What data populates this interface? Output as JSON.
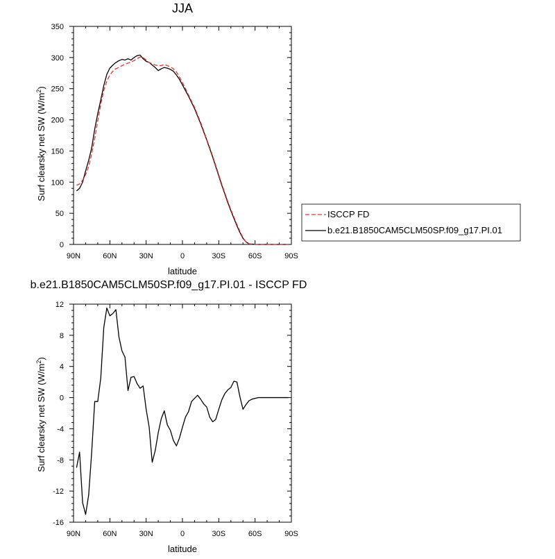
{
  "chart_data": [
    {
      "type": "line",
      "title": "JJA",
      "xlabel": "latitude",
      "ylabel": "Surf clearsky net SW (W/m²)",
      "ylabel_main": "Surf clearsky net SW (W/m",
      "ylabel_sup": "2",
      "ylabel_end": ")",
      "xlim": [
        -90,
        90
      ],
      "ylim": [
        0,
        350
      ],
      "x_ticks": [
        -90,
        -60,
        -30,
        0,
        30,
        60,
        90
      ],
      "x_tick_labels": [
        "90N",
        "60N",
        "30N",
        "0",
        "30S",
        "60S",
        "90S"
      ],
      "y_ticks": [
        0,
        50,
        100,
        150,
        200,
        250,
        300,
        350
      ],
      "y_tick_labels": [
        "0",
        "50",
        "100",
        "150",
        "200",
        "250",
        "300",
        "350"
      ],
      "legend_position": "right",
      "series": [
        {
          "name": "ISCCP FD",
          "color": "#e8302a",
          "dash": true,
          "x": [
            -87.5,
            -85,
            -82.5,
            -80,
            -77.5,
            -75,
            -72.5,
            -70,
            -67.5,
            -65,
            -62.5,
            -60,
            -57.5,
            -55,
            -52.5,
            -50,
            -47.5,
            -45,
            -42.5,
            -40,
            -37.5,
            -35,
            -32.5,
            -30,
            -27.5,
            -25,
            -22.5,
            -20,
            -17.5,
            -15,
            -12.5,
            -10,
            -7.5,
            -5,
            -2.5,
            0,
            2.5,
            5,
            7.5,
            10,
            12.5,
            15,
            17.5,
            20,
            22.5,
            25,
            27.5,
            30,
            32.5,
            35,
            37.5,
            40,
            42.5,
            45,
            47.5,
            50,
            52.5,
            55,
            57.5,
            60,
            62.5,
            65,
            67.5,
            70,
            72.5,
            75,
            77.5,
            80,
            82.5,
            85,
            87.5
          ],
          "values": [
            95,
            97,
            103,
            112,
            125,
            145,
            170,
            198,
            225,
            247,
            262,
            272,
            278,
            282,
            284,
            287,
            289,
            291,
            293,
            295,
            298,
            301,
            300,
            296,
            292,
            290,
            288,
            287,
            287,
            289,
            287,
            285,
            282,
            277,
            269,
            260,
            250,
            240,
            230,
            220,
            208,
            196,
            183,
            169,
            156,
            142,
            127,
            112,
            97,
            83,
            69,
            56,
            44,
            32,
            21,
            11,
            4,
            1,
            0.5,
            0,
            0,
            0,
            0,
            0,
            0,
            0,
            0,
            0,
            0,
            0,
            0
          ]
        },
        {
          "name": "b.e21.B1850CAM5CLM50SP.f09_g17.PI.01",
          "color": "#000000",
          "dash": false,
          "x": [
            -87.5,
            -85,
            -82.5,
            -80,
            -77.5,
            -75,
            -72.5,
            -70,
            -67.5,
            -65,
            -62.5,
            -60,
            -57.5,
            -55,
            -52.5,
            -50,
            -47.5,
            -45,
            -42.5,
            -40,
            -37.5,
            -35,
            -32.5,
            -30,
            -27.5,
            -25,
            -22.5,
            -20,
            -17.5,
            -15,
            -12.5,
            -10,
            -7.5,
            -5,
            -2.5,
            0,
            2.5,
            5,
            7.5,
            10,
            12.5,
            15,
            17.5,
            20,
            22.5,
            25,
            27.5,
            30,
            32.5,
            35,
            37.5,
            40,
            42.5,
            45,
            47.5,
            50,
            52.5,
            55,
            57.5,
            60,
            62.5,
            65,
            67.5,
            70,
            72.5,
            75,
            77.5,
            80,
            82.5,
            85,
            87.5
          ],
          "values": [
            86,
            90,
            100,
            118,
            135,
            155,
            185,
            210,
            232,
            255,
            273,
            283,
            288,
            292,
            295,
            297,
            296,
            298,
            296,
            300,
            303,
            304,
            298,
            294,
            292,
            288,
            284,
            279,
            282,
            284,
            283,
            281,
            278,
            272,
            265,
            256,
            247,
            238,
            228,
            218,
            206,
            194,
            181,
            168,
            154,
            140,
            125,
            110,
            95,
            81,
            67,
            54,
            42,
            30,
            19,
            10,
            4,
            1,
            0.5,
            0,
            0,
            0,
            0,
            0,
            0,
            0,
            0,
            0,
            0,
            0,
            0
          ]
        }
      ]
    },
    {
      "type": "line",
      "title": "b.e21.B1850CAM5CLM50SP.f09_g17.PI.01 - ISCCP FD",
      "xlabel": "latitude",
      "ylabel": "Surf clearsky net SW (W/m²)",
      "ylabel_main": "Surf clearsky net SW (W/m",
      "ylabel_sup": "2",
      "ylabel_end": ")",
      "xlim": [
        -90,
        90
      ],
      "ylim": [
        -16,
        12
      ],
      "x_ticks": [
        -90,
        -60,
        -30,
        0,
        30,
        60,
        90
      ],
      "x_tick_labels": [
        "90N",
        "60N",
        "30N",
        "0",
        "30S",
        "60S",
        "90S"
      ],
      "y_ticks": [
        -16,
        -12,
        -8,
        -4,
        0,
        4,
        8,
        12
      ],
      "y_tick_labels": [
        "-16",
        "-12",
        "-8",
        "-4",
        "0",
        "4",
        "8",
        "12"
      ],
      "series": [
        {
          "name": "",
          "color": "#000000",
          "dash": false,
          "x": [
            -87.5,
            -85,
            -82.5,
            -80,
            -77.5,
            -75,
            -72.5,
            -70,
            -67.5,
            -65,
            -62.5,
            -60,
            -57.5,
            -55,
            -52.5,
            -50,
            -47.5,
            -45,
            -42.5,
            -40,
            -37.5,
            -35,
            -32.5,
            -30,
            -27.5,
            -25,
            -22.5,
            -20,
            -17.5,
            -15,
            -12.5,
            -10,
            -7.5,
            -5,
            -2.5,
            0,
            2.5,
            5,
            7.5,
            10,
            12.5,
            15,
            17.5,
            20,
            22.5,
            25,
            27.5,
            30,
            32.5,
            35,
            37.5,
            40,
            42.5,
            45,
            47.5,
            50,
            52.5,
            55,
            57.5,
            60,
            62.5,
            65,
            67.5,
            70,
            72.5,
            75,
            77.5,
            80,
            82.5,
            85,
            87.5
          ],
          "values": [
            -9,
            -7,
            -13.5,
            -15,
            -12.5,
            -7,
            -0.5,
            -0.5,
            2.5,
            9,
            11.5,
            10.5,
            10.8,
            11.3,
            7.8,
            6,
            5.2,
            0.9,
            2.6,
            2.7,
            1.8,
            1.2,
            1.5,
            -1.5,
            -3.8,
            -8.3,
            -6.8,
            -4.5,
            -2.7,
            -1.7,
            -3.5,
            -4.2,
            -5.5,
            -6.2,
            -5.2,
            -3.8,
            -2.5,
            -1.8,
            -0.5,
            -0.1,
            0.3,
            -0.2,
            -0.8,
            -1.2,
            -2.5,
            -3.1,
            -2.8,
            -1.5,
            -0.3,
            0.5,
            1.0,
            1.3,
            2.1,
            2.0,
            0.1,
            -1.5,
            -0.9,
            -0.4,
            -0.2,
            -0.1,
            0,
            0,
            0,
            0,
            0,
            0,
            0,
            0,
            0,
            0,
            0
          ]
        }
      ]
    }
  ]
}
